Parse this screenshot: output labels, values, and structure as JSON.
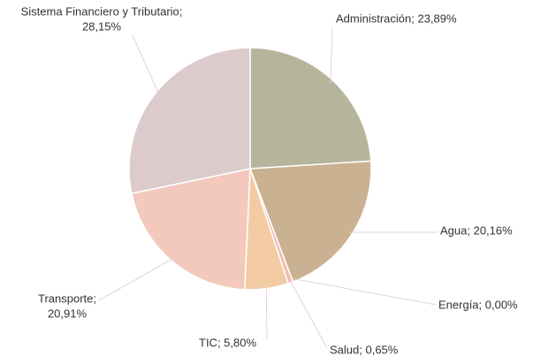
{
  "chart_data": {
    "type": "pie",
    "values": [
      23.89,
      20.16,
      0.0,
      0.65,
      5.8,
      20.91,
      28.15
    ],
    "labels": [
      [
        "Administración; 23,89%"
      ],
      [
        "Agua; 20,16%"
      ],
      [
        "Energía; 0,00%"
      ],
      [
        "Salud; 0,65%"
      ],
      [
        "TIC; 5,80%"
      ],
      [
        "Transporte;",
        "20,91%"
      ],
      [
        "Sistema Financiero y Tributario;",
        "28,15%"
      ]
    ],
    "colors": [
      "#b6b59c",
      "#c9b191",
      "#e9a898",
      "#eebcae",
      "#f3cba3",
      "#f3c9bd",
      "#dccacd"
    ]
  }
}
